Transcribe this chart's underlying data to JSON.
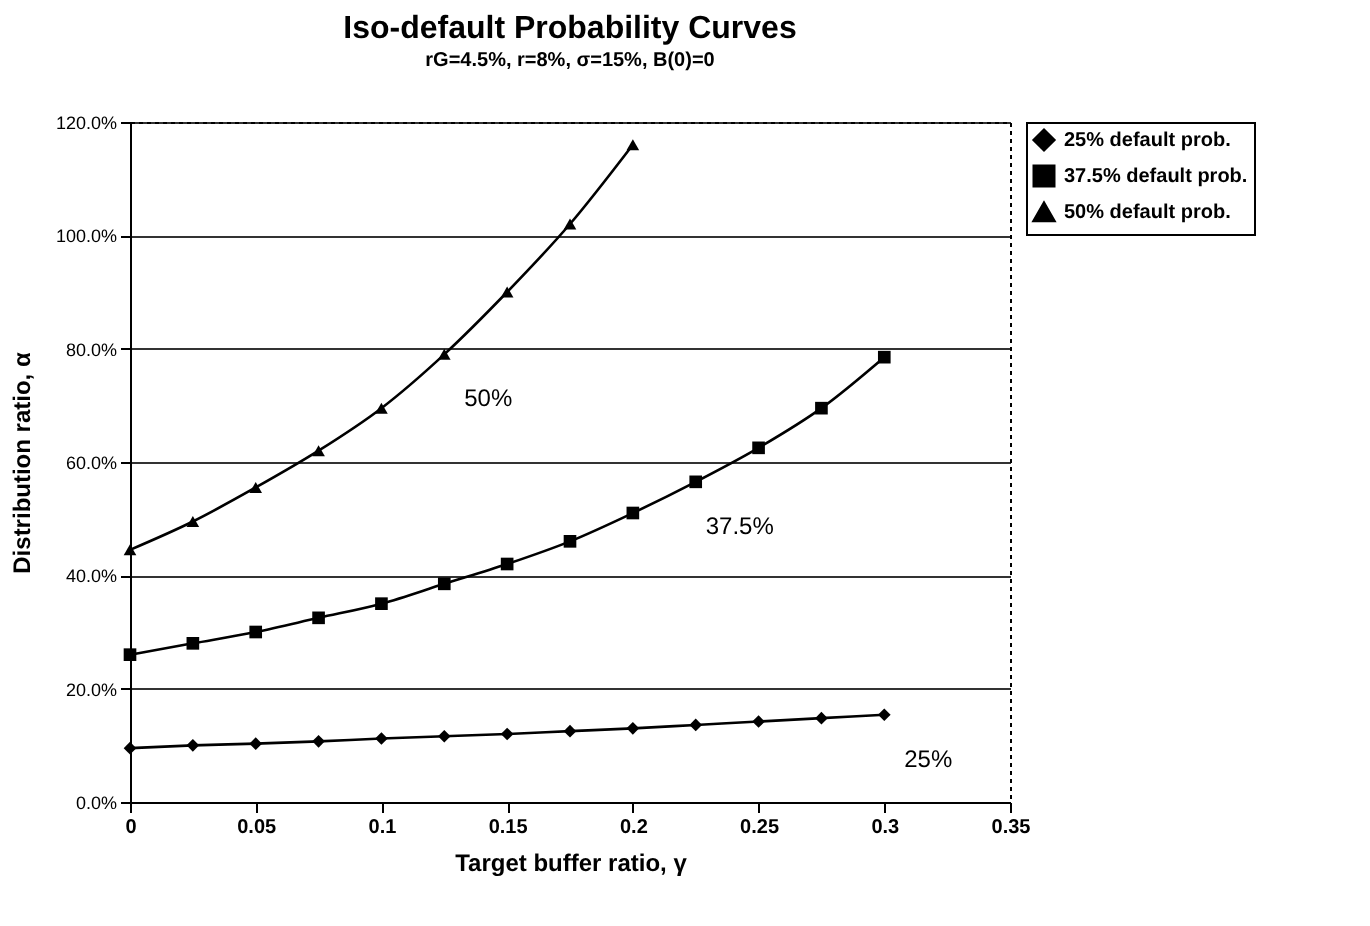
{
  "chart_data": {
    "type": "line",
    "title": "Iso-default Probability Curves",
    "subtitle": "rG=4.5%, r=8%, σ=15%, B(0)=0",
    "xlabel": "Target buffer ratio, γ",
    "ylabel": "Distribution ratio, α",
    "xlim": [
      0,
      0.35
    ],
    "xticks": [
      0,
      0.05,
      0.1,
      0.15,
      0.2,
      0.25,
      0.3,
      0.35
    ],
    "ylim": [
      0,
      120
    ],
    "yticks": [
      {
        "value": 0,
        "label": "0.0%"
      },
      {
        "value": 20,
        "label": "20.0%"
      },
      {
        "value": 40,
        "label": "40.0%"
      },
      {
        "value": 60,
        "label": "60.0%"
      },
      {
        "value": 80,
        "label": "80.0%"
      },
      {
        "value": 100,
        "label": "100.0%"
      },
      {
        "value": 120,
        "label": "120.0%"
      }
    ],
    "grid": "y",
    "legend": "right",
    "line_style": "solid",
    "series": [
      {
        "name": "25% default prob.",
        "color": "#000000",
        "marker": "diamond",
        "x": [
          0,
          0.025,
          0.05,
          0.075,
          0.1,
          0.125,
          0.15,
          0.175,
          0.2,
          0.225,
          0.25,
          0.275,
          0.3
        ],
        "values": [
          9.5,
          10,
          10.3,
          10.7,
          11.2,
          11.6,
          12,
          12.5,
          13,
          13.6,
          14.2,
          14.8,
          15.4
        ]
      },
      {
        "name": "37.5% default prob.",
        "color": "#000000",
        "marker": "square",
        "x": [
          0,
          0.025,
          0.05,
          0.075,
          0.1,
          0.125,
          0.15,
          0.175,
          0.2,
          0.225,
          0.25,
          0.275,
          0.3
        ],
        "values": [
          26,
          28,
          30,
          32.5,
          35,
          38.5,
          42,
          46,
          51,
          56.5,
          62.5,
          69.5,
          78.5
        ]
      },
      {
        "name": "50% default prob.",
        "color": "#000000",
        "marker": "triangle",
        "x": [
          0,
          0.025,
          0.05,
          0.075,
          0.1,
          0.125,
          0.15,
          0.175,
          0.2
        ],
        "values": [
          44.5,
          49.5,
          55.5,
          62,
          69.5,
          79,
          90,
          102,
          116
        ]
      }
    ],
    "annotations": [
      "50%",
      "37.5%",
      "25%"
    ]
  }
}
